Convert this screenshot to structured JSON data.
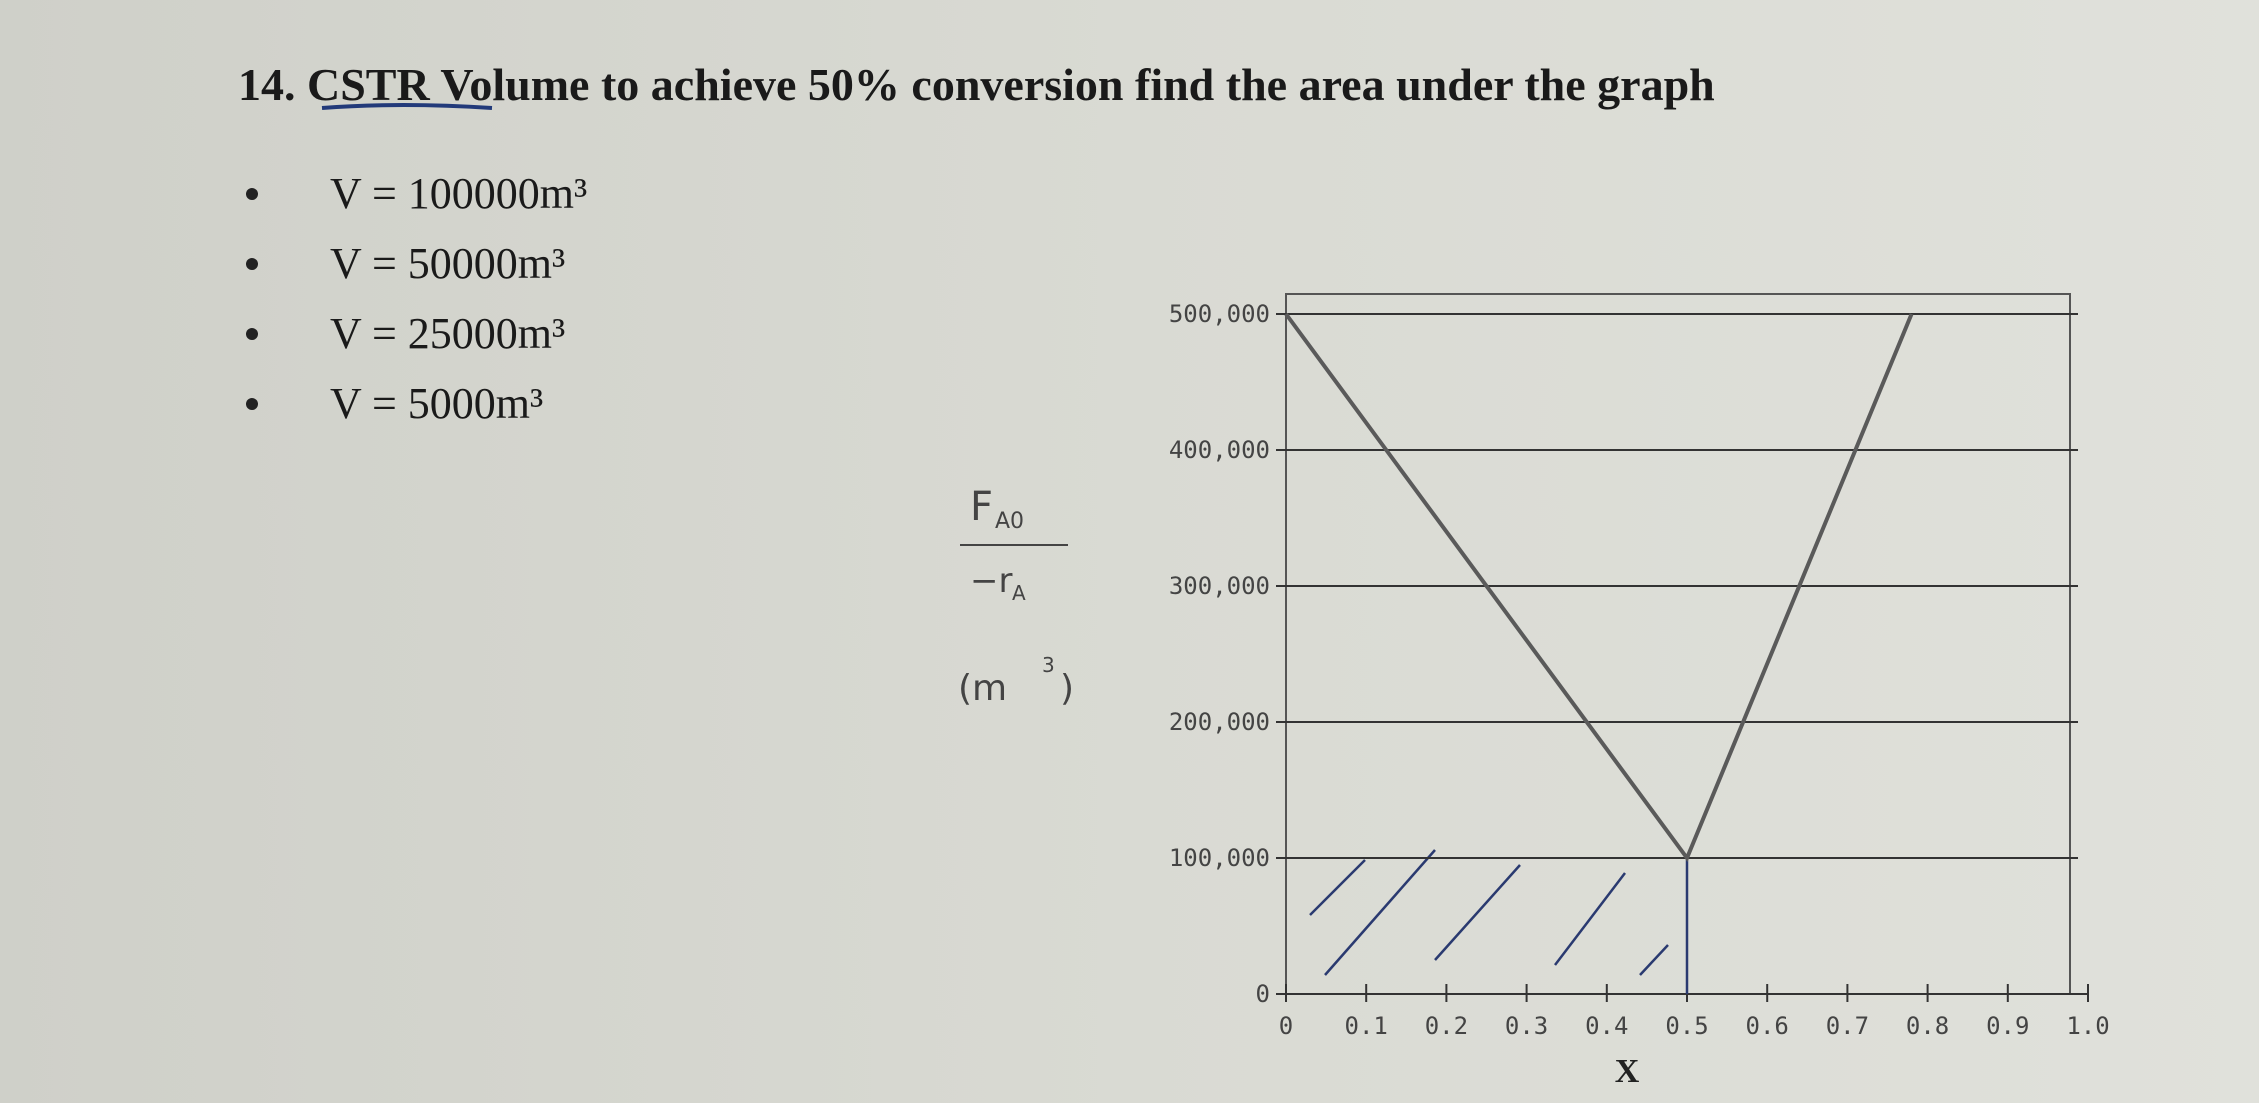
{
  "question": {
    "title": "14. CSTR Volume to achieve 50% conversion find the area under the graph",
    "options": [
      "V = 100000m³",
      "V = 50000m³",
      "V = 25000m³",
      "V = 5000m³"
    ]
  },
  "chart_data": {
    "type": "line",
    "x": [
      0,
      0.5,
      0.78
    ],
    "values": [
      500000,
      100000,
      500000
    ],
    "color": "#5a5a5a",
    "xlim": [
      0,
      1
    ],
    "ylim": [
      0,
      500000
    ],
    "xticks": [
      0,
      0.1,
      0.2,
      0.3,
      0.4,
      0.5,
      0.6,
      0.7,
      0.8,
      0.9,
      {
        "value": 1,
        "label": "1.0"
      }
    ],
    "yticks": [
      0,
      {
        "value": 100000,
        "label": "100,000"
      },
      {
        "value": 200000,
        "label": "200,000"
      },
      {
        "value": 300000,
        "label": "300,000"
      },
      {
        "value": 400000,
        "label": "400,000"
      },
      {
        "value": 500000,
        "label": "500,000"
      }
    ],
    "grid": true,
    "xlabel": "X",
    "ylabel": {
      "numerator": [
        "F",
        "A0"
      ],
      "denominator": [
        "−r",
        "A"
      ],
      "unit": [
        "(m",
        "3",
        ")"
      ]
    }
  }
}
